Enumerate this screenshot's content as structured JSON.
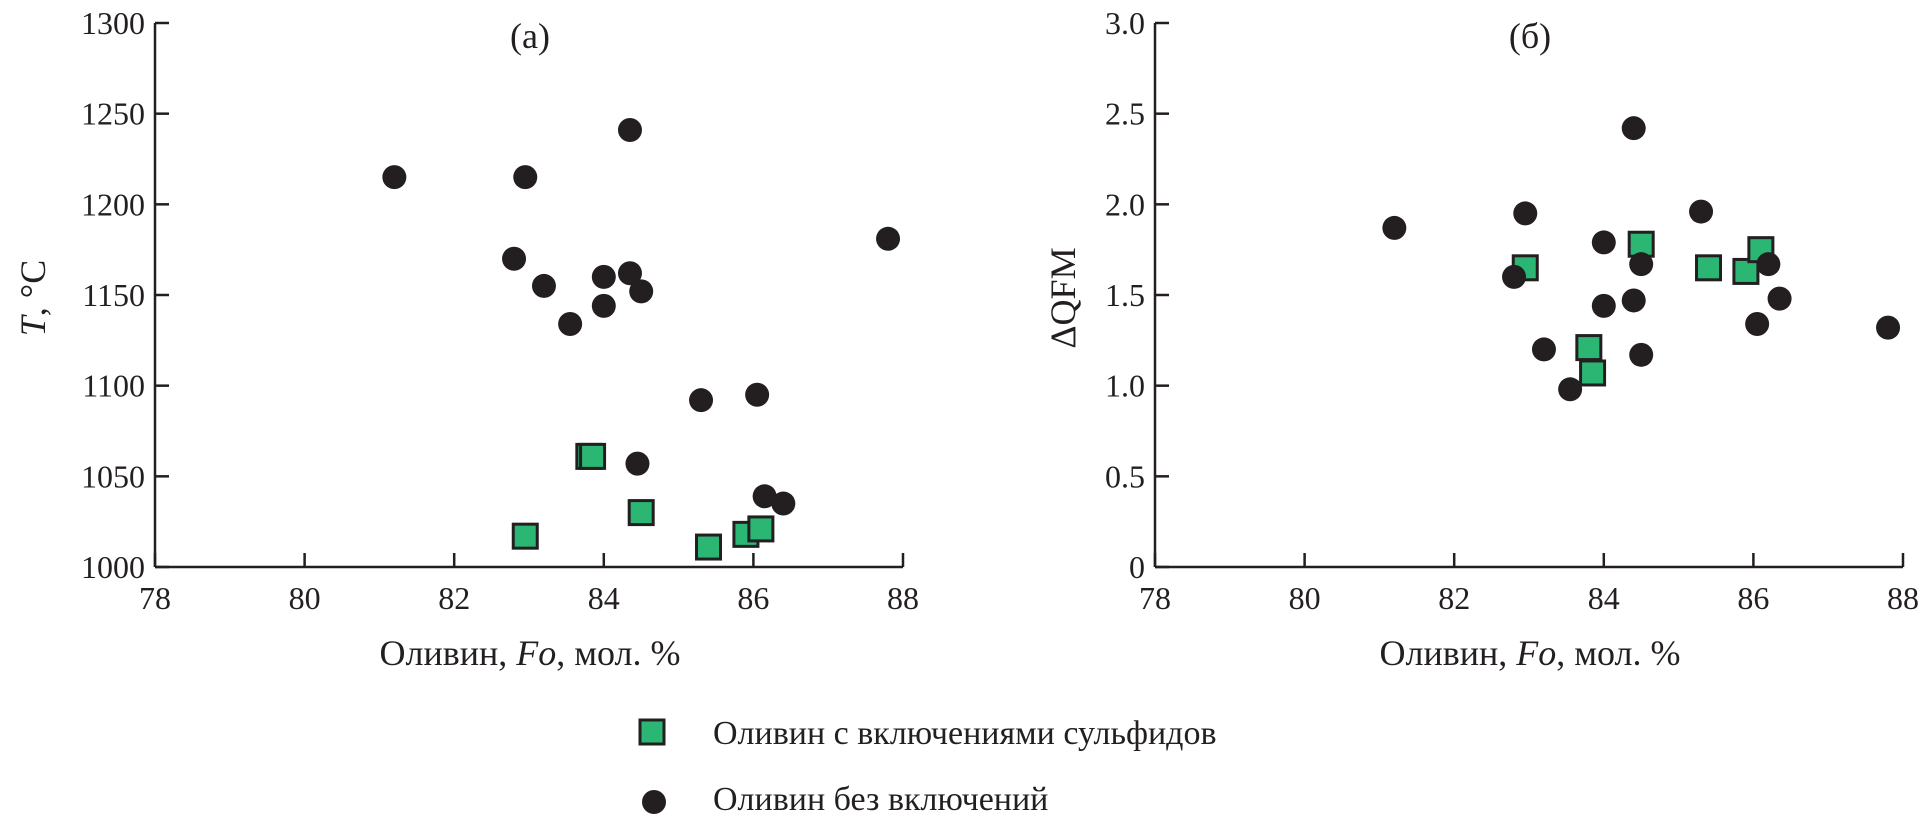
{
  "colors": {
    "sulfide_marker": "#2bb673",
    "plain_marker": "#231f20",
    "axis": "#231f20"
  },
  "chart_data": [
    {
      "type": "scatter",
      "panel_label": "(а)",
      "xlabel": {
        "prefix": "Оливин, ",
        "italic": "Fo",
        "suffix": ", мол. %"
      },
      "ylabel": {
        "italic": "T",
        "suffix": ", °C"
      },
      "xlim": [
        78,
        88
      ],
      "ylim": [
        1000,
        1300
      ],
      "xticks": [
        "78",
        "80",
        "82",
        "84",
        "86",
        "88"
      ],
      "yticks": [
        "1000",
        "1050",
        "1100",
        "1150",
        "1200",
        "1250",
        "1300"
      ],
      "grid": false,
      "series": [
        {
          "name": "Оливин с включениями сульфидов",
          "marker": "square",
          "x": [
            82.95,
            83.8,
            83.85,
            84.5,
            85.4,
            85.9,
            86.1
          ],
          "y": [
            1017,
            1061,
            1061,
            1030,
            1011,
            1018,
            1021
          ]
        },
        {
          "name": "Оливин без включений",
          "marker": "circle",
          "x": [
            81.2,
            82.95,
            84.35,
            82.8,
            84.0,
            84.35,
            83.2,
            84.5,
            84.0,
            83.55,
            85.3,
            86.05,
            84.45,
            86.15,
            86.4,
            87.8
          ],
          "y": [
            1215,
            1215,
            1241,
            1170,
            1160,
            1162,
            1155,
            1152,
            1144,
            1134,
            1092,
            1095,
            1057,
            1039,
            1035,
            1181
          ]
        }
      ]
    },
    {
      "type": "scatter",
      "panel_label": "(б)",
      "xlabel": {
        "prefix": "Оливин, ",
        "italic": "Fo",
        "suffix": ", мол. %"
      },
      "ylabel": {
        "text": "ΔQFM"
      },
      "xlim": [
        78,
        88
      ],
      "ylim": [
        0,
        3
      ],
      "xticks": [
        "78",
        "80",
        "82",
        "84",
        "86",
        "88"
      ],
      "yticks": [
        "0",
        "0.5",
        "1.0",
        "1.5",
        "2.0",
        "2.5",
        "3.0"
      ],
      "grid": false,
      "series": [
        {
          "name": "Оливин с включениями сульфидов",
          "marker": "square",
          "x": [
            82.95,
            83.8,
            83.85,
            84.5,
            85.4,
            85.9,
            86.1
          ],
          "y": [
            1.65,
            1.21,
            1.07,
            1.78,
            1.65,
            1.63,
            1.75
          ]
        },
        {
          "name": "Оливин без включений",
          "marker": "circle",
          "x": [
            81.2,
            82.95,
            82.8,
            83.2,
            83.55,
            84.0,
            84.0,
            84.4,
            84.4,
            84.5,
            84.5,
            85.3,
            86.05,
            86.2,
            86.35,
            87.8
          ],
          "y": [
            1.87,
            1.95,
            1.6,
            1.2,
            0.98,
            1.79,
            1.44,
            1.47,
            2.42,
            1.67,
            1.17,
            1.96,
            1.34,
            1.67,
            1.48,
            1.32
          ]
        }
      ]
    }
  ],
  "legend": [
    {
      "marker": "square",
      "label": "Оливин с включениями сульфидов"
    },
    {
      "marker": "circle",
      "label": "Оливин без включений"
    }
  ]
}
